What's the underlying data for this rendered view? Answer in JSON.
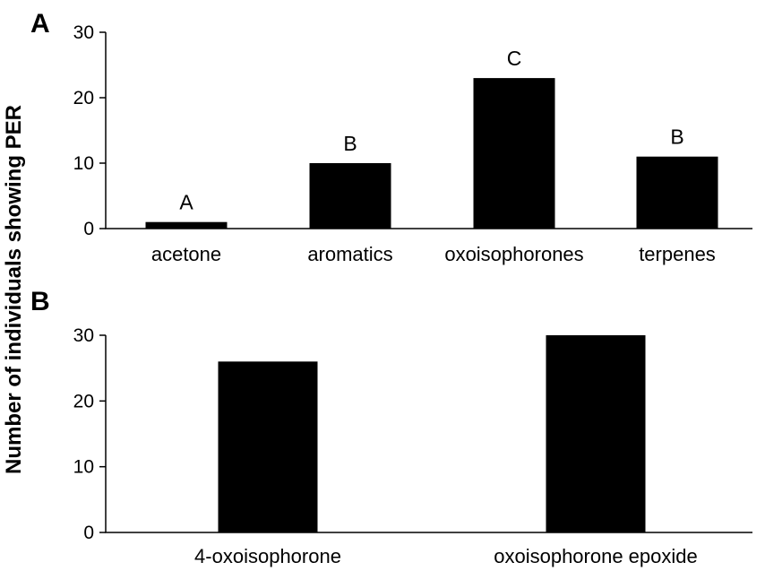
{
  "ylabel": "Number of individuals showing PER",
  "chart_data": [
    {
      "type": "bar",
      "panel": "A",
      "categories": [
        "acetone",
        "aromatics",
        "oxoisophorones",
        "terpenes"
      ],
      "values": [
        1,
        10,
        23,
        11
      ],
      "significance": [
        "A",
        "B",
        "C",
        "B"
      ],
      "ylim": [
        0,
        30
      ],
      "yticks": [
        "0",
        "10",
        "20",
        "30"
      ],
      "grid": false,
      "legend": "none"
    },
    {
      "type": "bar",
      "panel": "B",
      "categories": [
        "4-oxoisophorone",
        "oxoisophorone epoxide"
      ],
      "values": [
        26,
        30
      ],
      "ylim": [
        0,
        30
      ],
      "yticks": [
        "0",
        "10",
        "20",
        "30"
      ],
      "grid": false,
      "legend": "none"
    }
  ]
}
